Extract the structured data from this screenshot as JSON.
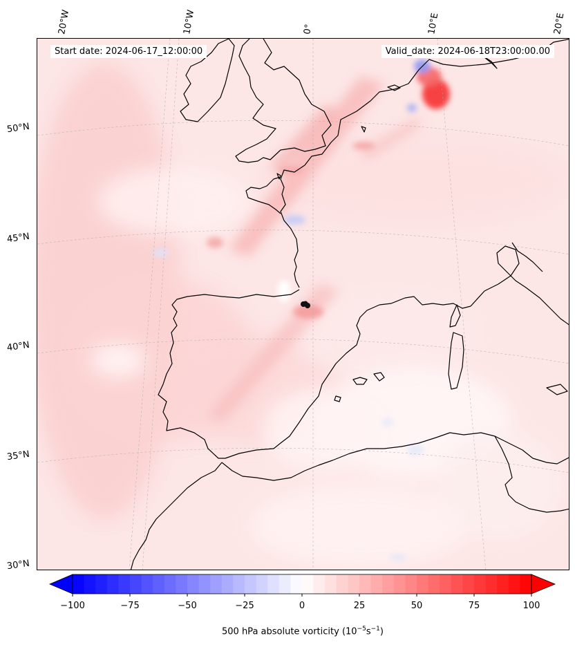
{
  "map": {
    "start_date": "Start date: 2024-06-17_12:00:00",
    "valid_date": "Valid_date: 2024-06-18T23:00:00.00",
    "lon_labels": [
      "20°W",
      "10°W",
      "0°",
      "10°E",
      "20°E"
    ],
    "lat_labels": [
      "50°N",
      "45°N",
      "40°N",
      "35°N",
      "30°N"
    ]
  },
  "colorbar": {
    "ticks": [
      "−100",
      "−75",
      "−50",
      "−25",
      "0",
      "25",
      "50",
      "75",
      "100"
    ],
    "label_prefix": "500 hPa absolute vorticity (10",
    "label_exp1": "−5",
    "label_mid": "s",
    "label_exp2": "−1",
    "label_suffix": ")",
    "min": -100,
    "max": 100,
    "levels": 40,
    "colormap": "bwr"
  },
  "colors": {
    "coast": "#000000",
    "marker": "#111111",
    "bg_pink": "#fde9e9"
  }
}
